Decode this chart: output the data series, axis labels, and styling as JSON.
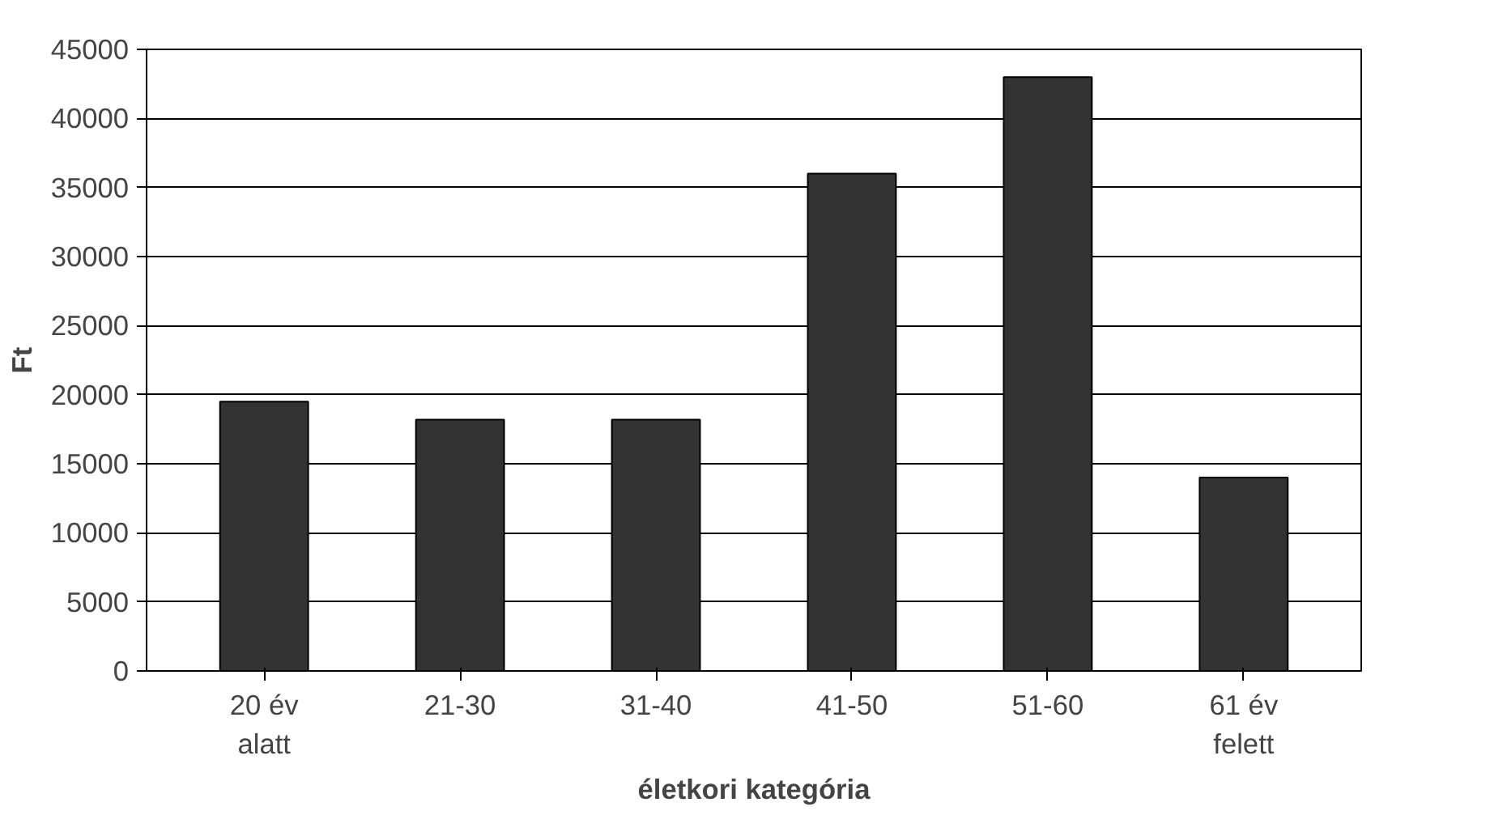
{
  "chart_data": {
    "type": "bar",
    "xlabel": "életkori kategória",
    "ylabel": "Ft",
    "categories": [
      "20 év\nalatt",
      "21-30",
      "31-40",
      "41-50",
      "51-60",
      "61 év\nfelett"
    ],
    "values": [
      19500,
      18200,
      18200,
      36000,
      43000,
      14000
    ],
    "color": "#333333",
    "ylim": [
      0,
      45000
    ],
    "yticks": [
      0,
      5000,
      10000,
      15000,
      20000,
      25000,
      30000,
      35000,
      40000,
      45000
    ],
    "grid": "y"
  }
}
